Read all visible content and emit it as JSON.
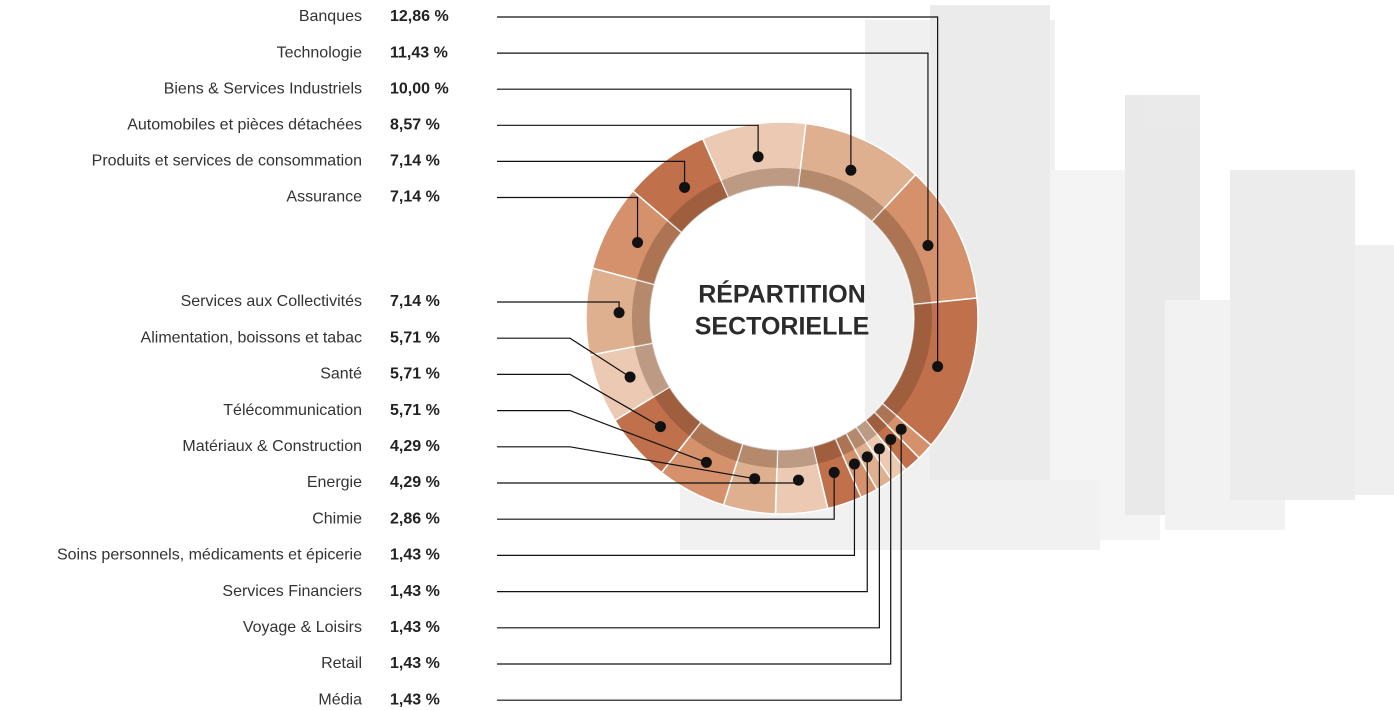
{
  "chart_data": {
    "type": "donut",
    "title": [
      "RÉPARTITION",
      "SECTORIELLE"
    ],
    "categories": [
      "Banques",
      "Technologie",
      "Biens & Services Industriels",
      "Automobiles et pièces détachées",
      "Produits et services de consommation",
      "Assurance",
      "Services aux Collectivités",
      "Alimentation, boissons et tabac",
      "Santé",
      "Télécommunication",
      "Matériaux & Construction",
      "Energie",
      "Chimie",
      "Soins personnels, médicaments et épicerie",
      "Services Financiers",
      "Voyage & Loisirs",
      "Retail",
      "Média"
    ],
    "values": [
      12.86,
      11.43,
      10.0,
      8.57,
      7.14,
      7.14,
      7.14,
      5.71,
      5.71,
      5.71,
      4.29,
      4.29,
      2.86,
      1.43,
      1.43,
      1.43,
      1.43,
      1.43
    ],
    "value_labels": [
      "12,86 %",
      "11,43 %",
      "10,00 %",
      "8,57 %",
      "7,14 %",
      "7,14 %",
      "7,14 %",
      "5,71 %",
      "5,71 %",
      "5,71 %",
      "4,29 %",
      "4,29 %",
      "2,86 %",
      "1,43 %",
      "1,43 %",
      "1,43 %",
      "1,43 %",
      "1,43 %"
    ],
    "colors": [
      "#c0704a",
      "#d4916c",
      "#dfb090",
      "#ecc9b2",
      "#c0704a",
      "#d4916c",
      "#dfb090",
      "#ecc9b2",
      "#c0704a",
      "#d4916c",
      "#dfb090",
      "#ecc9b2",
      "#c0704a",
      "#d4916c",
      "#dfb090",
      "#ecc9b2",
      "#c0704a",
      "#d4916c"
    ]
  }
}
